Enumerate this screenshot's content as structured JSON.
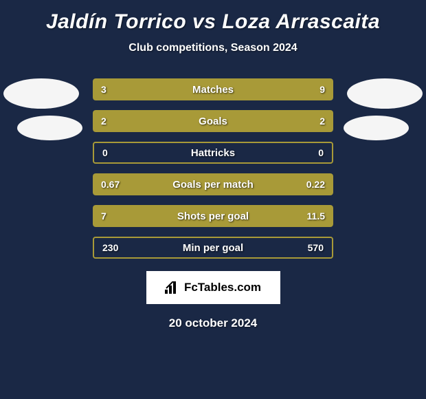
{
  "title": "Jaldín Torrico vs Loza Arrascaita",
  "subtitle": "Club competitions, Season 2024",
  "date": "20 october 2024",
  "watermark": "FcTables.com",
  "colors": {
    "background": "#1a2845",
    "bar_fill": "#a89a38",
    "bar_outline": "#a89a38",
    "text": "#ffffff",
    "watermark_bg": "#ffffff",
    "watermark_text": "#000000"
  },
  "stats": [
    {
      "label": "Matches",
      "left_val": "3",
      "right_val": "9",
      "left_pct": 25,
      "right_pct": 75,
      "style": "split"
    },
    {
      "label": "Goals",
      "left_val": "2",
      "right_val": "2",
      "left_pct": 50,
      "right_pct": 50,
      "style": "split"
    },
    {
      "label": "Hattricks",
      "left_val": "0",
      "right_val": "0",
      "left_pct": 0,
      "right_pct": 0,
      "style": "outline"
    },
    {
      "label": "Goals per match",
      "left_val": "0.67",
      "right_val": "0.22",
      "left_pct": 75,
      "right_pct": 25,
      "style": "split"
    },
    {
      "label": "Shots per goal",
      "left_val": "7",
      "right_val": "11.5",
      "left_pct": 38,
      "right_pct": 62,
      "style": "split"
    },
    {
      "label": "Min per goal",
      "left_val": "230",
      "right_val": "570",
      "left_pct": 0,
      "right_pct": 0,
      "style": "outline"
    }
  ]
}
